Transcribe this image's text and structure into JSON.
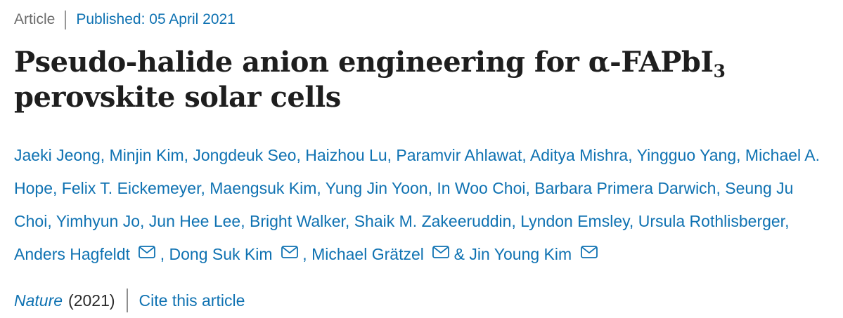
{
  "meta": {
    "type_label": "Article",
    "published": "Published: 05 April 2021"
  },
  "title": {
    "line1_main": "Pseudo-halide anion engineering for α-FAPbI",
    "line1_sub": "3",
    "line2": "perovskite solar cells"
  },
  "authors": {
    "separator": ",",
    "ampersand": "&",
    "list": [
      {
        "name": "Jaeki Jeong",
        "email": false
      },
      {
        "name": "Minjin Kim",
        "email": false
      },
      {
        "name": "Jongdeuk Seo",
        "email": false
      },
      {
        "name": "Haizhou Lu",
        "email": false
      },
      {
        "name": "Paramvir Ahlawat",
        "email": false
      },
      {
        "name": "Aditya Mishra",
        "email": false
      },
      {
        "name": "Yingguo Yang",
        "email": false
      },
      {
        "name": "Michael A. Hope",
        "email": false
      },
      {
        "name": "Felix T. Eickemeyer",
        "email": false
      },
      {
        "name": "Maengsuk Kim",
        "email": false
      },
      {
        "name": "Yung Jin Yoon",
        "email": false
      },
      {
        "name": "In Woo Choi",
        "email": false
      },
      {
        "name": "Barbara Primera Darwich",
        "email": false
      },
      {
        "name": "Seung Ju Choi",
        "email": false
      },
      {
        "name": "Yimhyun Jo",
        "email": false
      },
      {
        "name": "Jun Hee Lee",
        "email": false
      },
      {
        "name": "Bright Walker",
        "email": false
      },
      {
        "name": "Shaik M. Zakeeruddin",
        "email": false
      },
      {
        "name": "Lyndon Emsley",
        "email": false
      },
      {
        "name": "Ursula Rothlisberger",
        "email": false
      },
      {
        "name": "Anders Hagfeldt",
        "email": true
      },
      {
        "name": "Dong Suk Kim",
        "email": true
      },
      {
        "name": "Michael Grätzel",
        "email": true
      },
      {
        "name": "Jin Young Kim",
        "email": true
      }
    ]
  },
  "footer": {
    "journal": "Nature",
    "year": "(2021)",
    "cite_link": "Cite this article"
  },
  "icons": {
    "email": "envelope-icon"
  },
  "colors": {
    "link_blue": "#0f72b2",
    "meta_gray": "#6c6c6c",
    "title_black": "#1e1e1e",
    "divider_gray": "#979797"
  }
}
